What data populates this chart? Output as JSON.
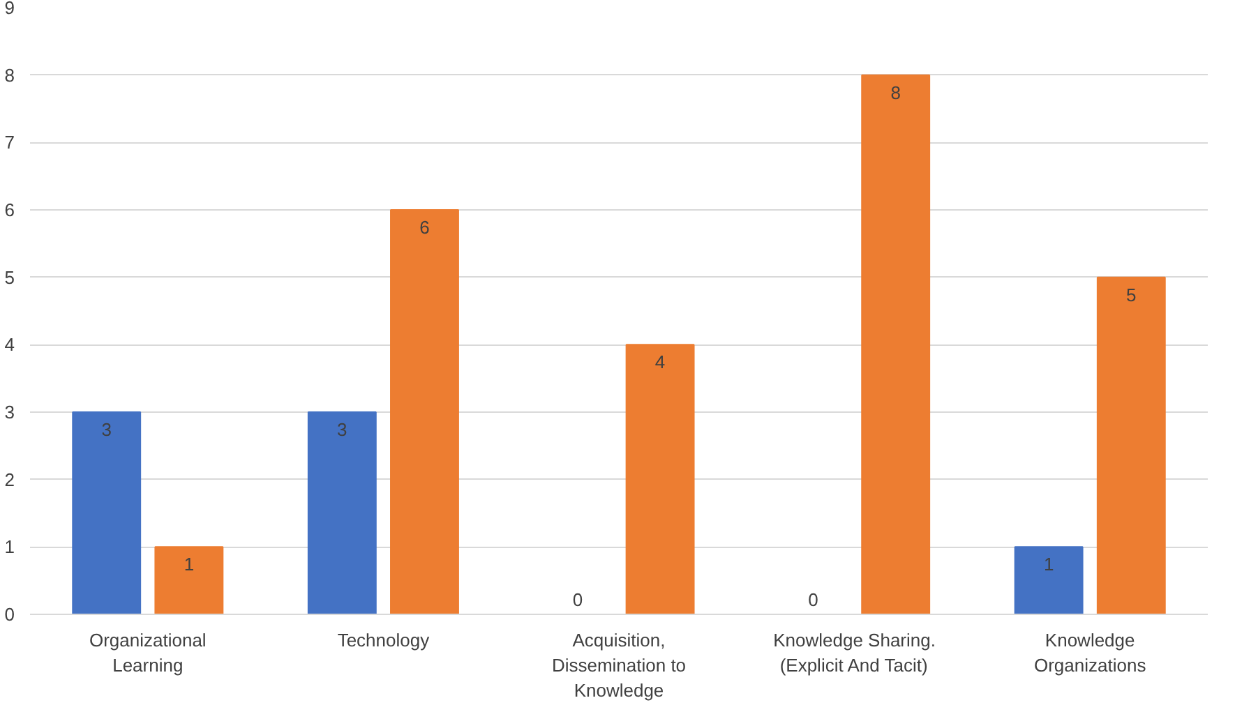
{
  "chart_data": {
    "type": "bar",
    "categories": [
      "Organizational Learning",
      "Technology",
      "Acquisition, Dissemination to Knowledge",
      "Knowledge Sharing. (Explicit And Tacit)",
      "Knowledge Organizations"
    ],
    "series": [
      {
        "color": "#4472c4",
        "values": [
          3,
          3,
          0,
          0,
          1
        ]
      },
      {
        "color": "#ed7d31",
        "values": [
          1,
          6,
          4,
          8,
          5
        ]
      }
    ],
    "ylim": [
      0,
      9
    ],
    "yticks": [
      0,
      1,
      2,
      3,
      4,
      5,
      6,
      7,
      8,
      9
    ],
    "grid": "y",
    "data_labels": true
  }
}
